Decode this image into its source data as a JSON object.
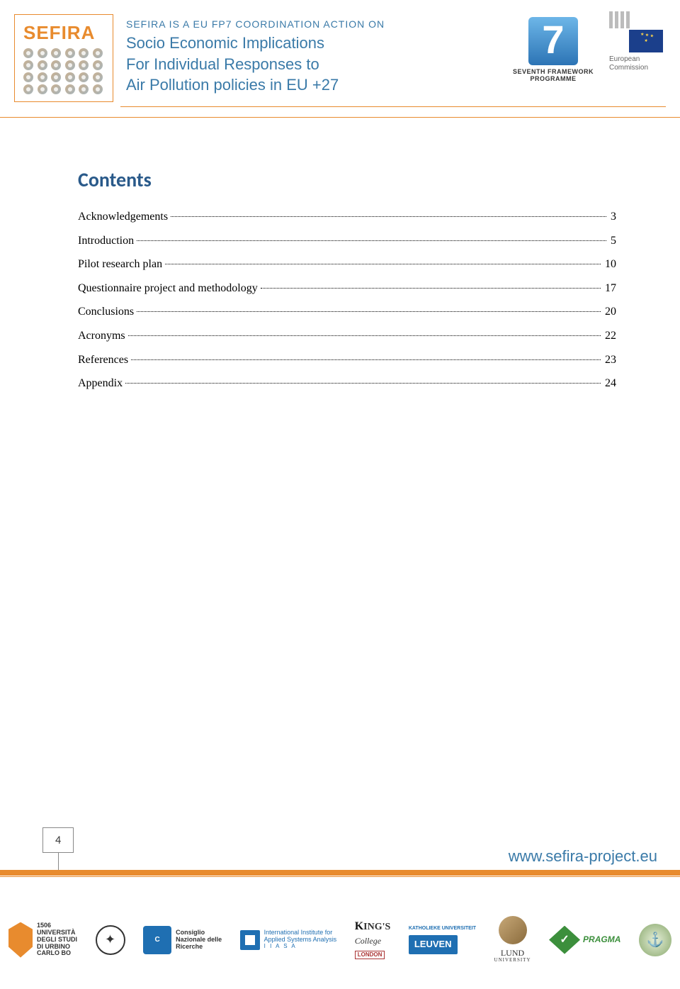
{
  "header": {
    "logo_name": "SEFIRA",
    "tagline_line1": "SEFIRA IS A EU FP7 COORDINATION ACTION ON",
    "tagline_line2": "Socio Economic Implications",
    "tagline_line3": "For Individual Responses to",
    "tagline_line4": "Air Pollution policies in EU +27",
    "fp7_label1": "SEVENTH FRAMEWORK",
    "fp7_label2": "PROGRAMME",
    "ec_label1": "European",
    "ec_label2": "Commission",
    "colors": {
      "accent_orange": "#e88b2e",
      "accent_blue": "#3a7aa8",
      "heading_blue": "#2a5a8a",
      "text_black": "#000000",
      "background": "#ffffff"
    }
  },
  "contents": {
    "heading": "Contents",
    "heading_fontsize": 28,
    "heading_color": "#2a5a8a",
    "entry_fontsize": 16,
    "entries": [
      {
        "title": "Acknowledgements",
        "page": "3"
      },
      {
        "title": "Introduction",
        "page": "5"
      },
      {
        "title": "Pilot research plan",
        "page": "10"
      },
      {
        "title": "Questionnaire project and methodology",
        "page": "17"
      },
      {
        "title": "Conclusions",
        "page": "20"
      },
      {
        "title": "Acronyms",
        "page": "22"
      },
      {
        "title": "References",
        "page": "23"
      },
      {
        "title": "Appendix",
        "page": "24"
      }
    ]
  },
  "footer": {
    "page_number": "4",
    "url": "www.sefira-project.eu",
    "url_color": "#3a7aa8",
    "bar_color": "#e88b2e"
  },
  "partners": {
    "urbino_year": "1506",
    "urbino_l1": "UNIVERSITÀ",
    "urbino_l2": "DEGLI STUDI",
    "urbino_l3": "DI URBINO",
    "urbino_l4": "CARLO BO",
    "cnr_l1": "Consiglio",
    "cnr_l2": "Nazionale delle",
    "cnr_l3": "Ricerche",
    "iiasa_l1": "International Institute for",
    "iiasa_l2": "Applied Systems Analysis",
    "iiasa_abbrev": "I I A S A",
    "kings_l1": "ING'S",
    "kings_l2": "College",
    "kings_l3": "LONDON",
    "leuven_top": "KATHOLIEKE UNIVERSITEIT",
    "leuven_main": "LEUVEN",
    "lund_l1": "LUND",
    "lund_l2": "UNIVERSITY",
    "pragma": "PRAGMA"
  }
}
